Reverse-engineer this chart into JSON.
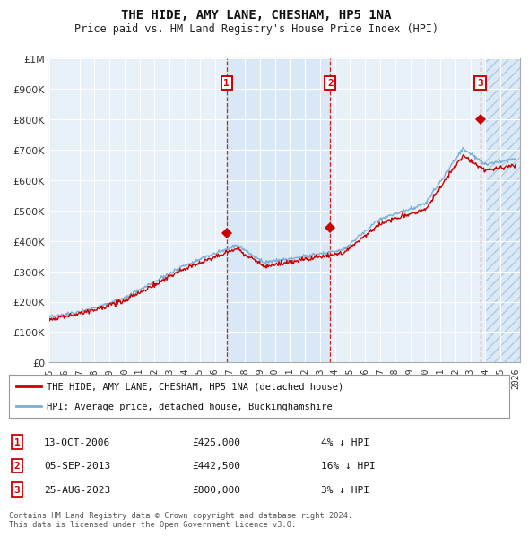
{
  "title": "THE HIDE, AMY LANE, CHESHAM, HP5 1NA",
  "subtitle": "Price paid vs. HM Land Registry's House Price Index (HPI)",
  "ylim": [
    0,
    1000000
  ],
  "xlim_start": 1995,
  "xlim_end": 2026.3,
  "yticks": [
    0,
    100000,
    200000,
    300000,
    400000,
    500000,
    600000,
    700000,
    800000,
    900000,
    1000000
  ],
  "ytick_labels": [
    "£0",
    "£100K",
    "£200K",
    "£300K",
    "£400K",
    "£500K",
    "£600K",
    "£700K",
    "£800K",
    "£900K",
    "£1M"
  ],
  "hpi_color": "#7bafd4",
  "price_color": "#cc0000",
  "bg_color": "#ffffff",
  "plot_bg_color": "#e8f0f8",
  "grid_color": "#ffffff",
  "shade_between_color": "#d0e4f5",
  "transactions": [
    {
      "date": 2006.79,
      "price": 425000,
      "label": "1"
    },
    {
      "date": 2013.68,
      "price": 442500,
      "label": "2"
    },
    {
      "date": 2023.65,
      "price": 800000,
      "label": "3"
    }
  ],
  "transaction_table": [
    {
      "num": "1",
      "date": "13-OCT-2006",
      "price": "£425,000",
      "hpi": "4% ↓ HPI"
    },
    {
      "num": "2",
      "date": "05-SEP-2013",
      "price": "£442,500",
      "hpi": "16% ↓ HPI"
    },
    {
      "num": "3",
      "date": "25-AUG-2023",
      "price": "£800,000",
      "hpi": "3% ↓ HPI"
    }
  ],
  "legend_entries": [
    "THE HIDE, AMY LANE, CHESHAM, HP5 1NA (detached house)",
    "HPI: Average price, detached house, Buckinghamshire"
  ],
  "footnote": "Contains HM Land Registry data © Crown copyright and database right 2024.\nThis data is licensed under the Open Government Licence v3.0.",
  "hatch_color": "#7bafd4",
  "hatch_bg": "#d0e4f5",
  "future_start": 2024.0
}
